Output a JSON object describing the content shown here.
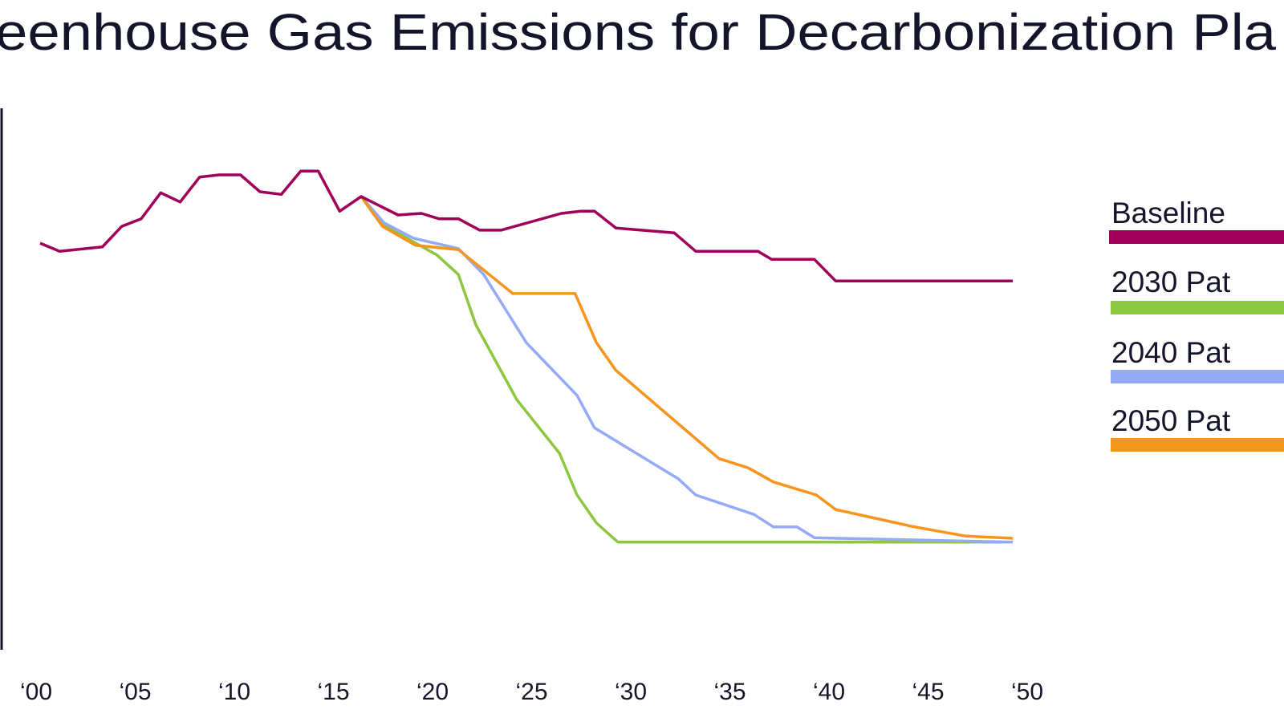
{
  "chart_data": {
    "type": "line",
    "title": "eenhouse Gas Emissions for Decarbonization Pla",
    "xlabel": "",
    "ylabel": "",
    "xlim": [
      2000,
      2050
    ],
    "ylim": [
      0,
      100
    ],
    "grid": false,
    "legend_placement": "right",
    "x_ticks": [
      2000,
      2005,
      2010,
      2015,
      2020,
      2025,
      2030,
      2035,
      2040,
      2045,
      2050
    ],
    "x_tick_labels": [
      "‘00",
      "‘05",
      "‘10",
      "‘15",
      "‘20",
      "‘25",
      "‘30",
      "‘35",
      "‘40",
      "‘45",
      "‘50"
    ],
    "series": [
      {
        "name": "Baseline",
        "color": "#a0005a",
        "points": [
          [
            2000,
            75.1
          ],
          [
            2001,
            73.6
          ],
          [
            2003.2,
            74.4
          ],
          [
            2004.2,
            78.2
          ],
          [
            2005.2,
            79.6
          ],
          [
            2006.2,
            84.4
          ],
          [
            2007.2,
            82.7
          ],
          [
            2008.2,
            87.3
          ],
          [
            2009.2,
            87.7
          ],
          [
            2010.3,
            87.7
          ],
          [
            2011.3,
            84.6
          ],
          [
            2012.4,
            84.1
          ],
          [
            2013.4,
            88.4
          ],
          [
            2014.3,
            88.4
          ],
          [
            2015.4,
            81.0
          ],
          [
            2016.5,
            83.7
          ],
          [
            2018.4,
            80.3
          ],
          [
            2019.6,
            80.6
          ],
          [
            2020.5,
            79.6
          ],
          [
            2021.5,
            79.6
          ],
          [
            2022.6,
            77.5
          ],
          [
            2023.7,
            77.5
          ],
          [
            2026.8,
            80.6
          ],
          [
            2027.8,
            81.0
          ],
          [
            2028.5,
            81.0
          ],
          [
            2029.6,
            77.9
          ],
          [
            2032.6,
            77.0
          ],
          [
            2033.7,
            73.6
          ],
          [
            2036.9,
            73.6
          ],
          [
            2037.6,
            72.1
          ],
          [
            2039.8,
            72.1
          ],
          [
            2040.9,
            68.1
          ],
          [
            2050,
            68.1
          ]
        ]
      },
      {
        "name": "2030 Pat",
        "color": "#8dc63f",
        "points": [
          [
            2016.5,
            83.7
          ],
          [
            2017.7,
            78.5
          ],
          [
            2019.2,
            75.3
          ],
          [
            2020.4,
            72.9
          ],
          [
            2021.5,
            69.3
          ],
          [
            2022.4,
            60.0
          ],
          [
            2024.5,
            46.2
          ],
          [
            2026.7,
            36.3
          ],
          [
            2027.6,
            28.6
          ],
          [
            2028.6,
            23.4
          ],
          [
            2029.7,
            19.9
          ],
          [
            2050,
            19.9
          ]
        ]
      },
      {
        "name": "2040 Pat",
        "color": "#94aaf7",
        "points": [
          [
            2016.5,
            83.7
          ],
          [
            2017.7,
            78.8
          ],
          [
            2019.2,
            76.0
          ],
          [
            2021.5,
            74.1
          ],
          [
            2022.8,
            69.3
          ],
          [
            2025.0,
            56.7
          ],
          [
            2027.6,
            47.0
          ],
          [
            2028.5,
            41.0
          ],
          [
            2032.8,
            31.6
          ],
          [
            2033.7,
            28.6
          ],
          [
            2036.7,
            25.0
          ],
          [
            2037.7,
            22.7
          ],
          [
            2038.9,
            22.7
          ],
          [
            2039.8,
            20.7
          ],
          [
            2050,
            19.9
          ]
        ]
      },
      {
        "name": "2050 Pat",
        "color": "#f7941d",
        "points": [
          [
            2016.5,
            83.7
          ],
          [
            2017.6,
            78.2
          ],
          [
            2019.3,
            74.7
          ],
          [
            2021.5,
            73.9
          ],
          [
            2024.3,
            65.8
          ],
          [
            2027.5,
            65.8
          ],
          [
            2028.6,
            56.7
          ],
          [
            2029.6,
            51.6
          ],
          [
            2034.9,
            35.3
          ],
          [
            2036.4,
            33.6
          ],
          [
            2037.7,
            31.0
          ],
          [
            2039.9,
            28.6
          ],
          [
            2040.9,
            25.9
          ],
          [
            2043.3,
            24.0
          ],
          [
            2044.8,
            22.8
          ],
          [
            2047.6,
            21.0
          ],
          [
            2050,
            20.6
          ]
        ]
      }
    ]
  }
}
